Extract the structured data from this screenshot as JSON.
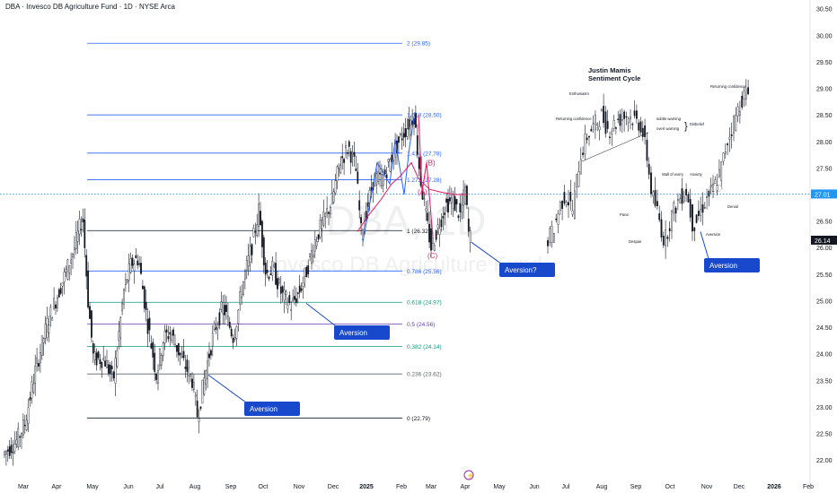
{
  "header": {
    "title": "DBA · Invesco DB Agriculture Fund · 1D · NYSE Arca"
  },
  "watermark": {
    "ticker": "DBA, 1D",
    "name": "Invesco DB Agriculture Fund"
  },
  "colors": {
    "up": "#ffffff",
    "down": "#131722",
    "accent": "#1848cc",
    "fib_blue": "#2962ff",
    "fib_green": "#089981",
    "fib_purple": "#673ab7",
    "pink": "#e91e63",
    "current_price": "#2196f3"
  },
  "chart_data": {
    "type": "candlestick",
    "xlabels": [
      "Mar",
      "Apr",
      "May",
      "Jun",
      "Jul",
      "Aug",
      "Sep",
      "Oct",
      "Nov",
      "Dec",
      "2025",
      "Feb",
      "Mar",
      "Apr",
      "May",
      "Jun",
      "Jul",
      "Aug",
      "Sep",
      "Oct",
      "Nov",
      "Dec",
      "2026",
      "Feb"
    ],
    "y_ticks": [
      22.0,
      22.5,
      23.0,
      23.5,
      24.0,
      24.5,
      25.0,
      25.5,
      26.0,
      26.5,
      27.0,
      27.5,
      28.0,
      28.5,
      29.0,
      29.5,
      30.0,
      30.5
    ],
    "ylim": [
      21.85,
      30.58
    ],
    "price_labels": {
      "current": "27.01",
      "prior": "26.14"
    },
    "fib_levels": [
      {
        "ratio": "0",
        "price": 22.79,
        "label": "0 (22.79)",
        "color": "#131722"
      },
      {
        "ratio": "0.236",
        "price": 23.62,
        "label": "0.236 (23.62)",
        "color": "#5d606b"
      },
      {
        "ratio": "0.382",
        "price": 24.14,
        "label": "0.382 (24.14)",
        "color": "#089981"
      },
      {
        "ratio": "0.5",
        "price": 24.56,
        "label": "0.5 (24.56)",
        "color": "#673ab7"
      },
      {
        "ratio": "0.618",
        "price": 24.97,
        "label": "0.618 (24.97)",
        "color": "#089981"
      },
      {
        "ratio": "0.786",
        "price": 25.56,
        "label": "0.786 (25.56)",
        "color": "#2962ff"
      },
      {
        "ratio": "1",
        "price": 26.32,
        "label": "1 (26.32)",
        "color": "#131722"
      },
      {
        "ratio": "1.272",
        "price": 27.28,
        "label": "1.272 (27.28)",
        "color": "#2962ff"
      },
      {
        "ratio": "1.414",
        "price": 27.78,
        "label": "1.414 (27.78)",
        "color": "#2962ff"
      },
      {
        "ratio": "1.618",
        "price": 28.5,
        "label": "1.618 (28.50)",
        "color": "#2962ff"
      },
      {
        "ratio": "2",
        "price": 29.85,
        "label": "2 (29.85)",
        "color": "#2962ff"
      }
    ],
    "wave_labels": [
      "(A)",
      "(B)",
      "(C)"
    ],
    "callouts": [
      "Aversion",
      "Aversion",
      "Aversion?",
      "Aversion"
    ],
    "inset": {
      "title_line1": "Justin Mamis",
      "title_line2": "Sentiment Cycle",
      "labels": [
        "Enthusiasm",
        "Returning confidence",
        "subtle warning",
        "overt warning",
        "Disbelief",
        "Wall of worry",
        "Anxiety",
        "Panic",
        "Denial",
        "Despair",
        "Aversion",
        "Returning confidence"
      ]
    }
  }
}
